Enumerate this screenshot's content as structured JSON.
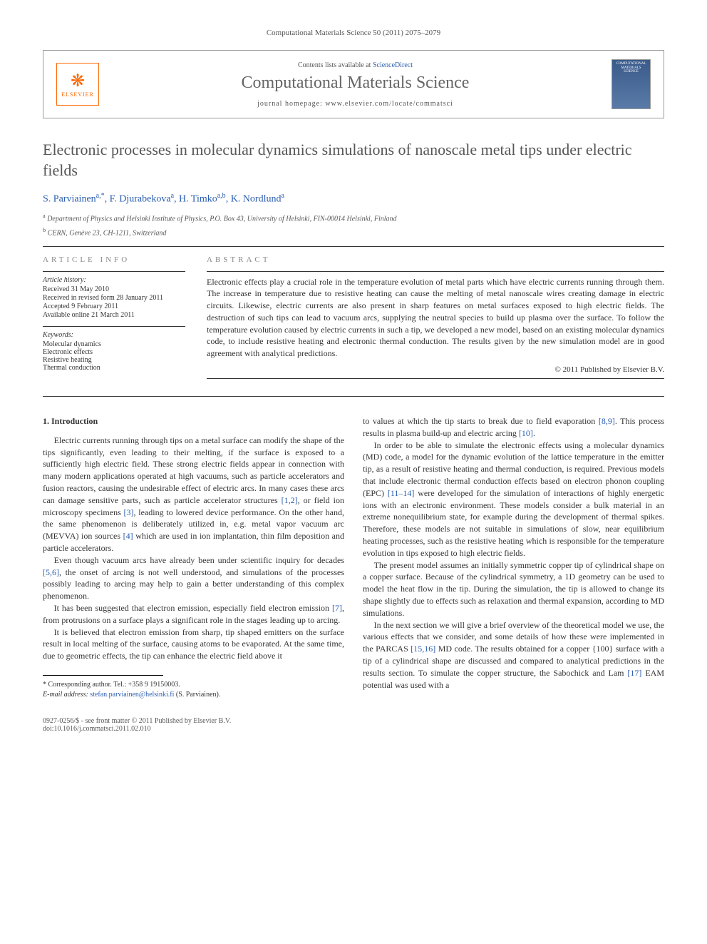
{
  "journal_ref": "Computational Materials Science 50 (2011) 2075–2079",
  "header": {
    "contents_prefix": "Contents lists available at ",
    "contents_link": "ScienceDirect",
    "journal_title": "Computational Materials Science",
    "homepage_label": "journal homepage: www.elsevier.com/locate/commatsci",
    "publisher": "ELSEVIER",
    "cover_label": "COMPUTATIONAL MATERIALS SCIENCE"
  },
  "article": {
    "title": "Electronic processes in molecular dynamics simulations of nanoscale metal tips under electric fields",
    "authors_html": "S. Parviainen",
    "author1_sup": "a,*",
    "author2": ", F. Djurabekova",
    "author2_sup": "a",
    "author3": ", H. Timko",
    "author3_sup": "a,b",
    "author4": ", K. Nordlund",
    "author4_sup": "a",
    "affiliations": {
      "a": "Department of Physics and Helsinki Institute of Physics, P.O. Box 43, University of Helsinki, FIN-00014 Helsinki, Finland",
      "b": "CERN, Genève 23, CH-1211, Switzerland"
    }
  },
  "meta": {
    "info_heading": "ARTICLE INFO",
    "abstract_heading": "ABSTRACT",
    "history_label": "Article history:",
    "history": {
      "received": "Received 31 May 2010",
      "revised": "Received in revised form 28 January 2011",
      "accepted": "Accepted 9 February 2011",
      "online": "Available online 21 March 2011"
    },
    "keywords_label": "Keywords:",
    "keywords": [
      "Molecular dynamics",
      "Electronic effects",
      "Resistive heating",
      "Thermal conduction"
    ]
  },
  "abstract": "Electronic effects play a crucial role in the temperature evolution of metal parts which have electric currents running through them. The increase in temperature due to resistive heating can cause the melting of metal nanoscale wires creating damage in electric circuits. Likewise, electric currents are also present in sharp features on metal surfaces exposed to high electric fields. The destruction of such tips can lead to vacuum arcs, supplying the neutral species to build up plasma over the surface. To follow the temperature evolution caused by electric currents in such a tip, we developed a new model, based on an existing molecular dynamics code, to include resistive heating and electronic thermal conduction. The results given by the new simulation model are in good agreement with analytical predictions.",
  "copyright": "© 2011 Published by Elsevier B.V.",
  "section1_heading": "1. Introduction",
  "body": {
    "p1a": "Electric currents running through tips on a metal surface can modify the shape of the tips significantly, even leading to their melting, if the surface is exposed to a sufficiently high electric field. These strong electric fields appear in connection with many modern applications operated at high vacuums, such as particle accelerators and fusion reactors, causing the undesirable effect of electric arcs. In many cases these arcs can damage sensitive parts, such as particle accelerator structures ",
    "p1_ref1": "[1,2]",
    "p1b": ", or field ion microscopy specimens ",
    "p1_ref2": "[3]",
    "p1c": ", leading to lowered device performance. On the other hand, the same phenomenon is deliberately utilized in, e.g. metal vapor vacuum arc (MEVVA) ion sources ",
    "p1_ref3": "[4]",
    "p1d": " which are used in ion implantation, thin film deposition and particle accelerators.",
    "p2a": "Even though vacuum arcs have already been under scientific inquiry for decades ",
    "p2_ref1": "[5,6]",
    "p2b": ", the onset of arcing is not well understood, and simulations of the processes possibly leading to arcing may help to gain a better understanding of this complex phenomenon.",
    "p3a": "It has been suggested that electron emission, especially field electron emission ",
    "p3_ref1": "[7]",
    "p3b": ", from protrusions on a surface plays a significant role in the stages leading up to arcing.",
    "p4": "It is believed that electron emission from sharp, tip shaped emitters on the surface result in local melting of the surface, causing atoms to be evaporated. At the same time, due to geometric effects, the tip can enhance the electric field above it",
    "p5a": "to values at which the tip starts to break due to field evaporation ",
    "p5_ref1": "[8,9]",
    "p5b": ". This process results in plasma build-up and electric arcing ",
    "p5_ref2": "[10]",
    "p5c": ".",
    "p6a": "In order to be able to simulate the electronic effects using a molecular dynamics (MD) code, a model for the dynamic evolution of the lattice temperature in the emitter tip, as a result of resistive heating and thermal conduction, is required. Previous models that include electronic thermal conduction effects based on electron phonon coupling (EPC) ",
    "p6_ref1": "[11–14]",
    "p6b": " were developed for the simulation of interactions of highly energetic ions with an electronic environment. These models consider a bulk material in an extreme nonequilibrium state, for example during the development of thermal spikes. Therefore, these models are not suitable in simulations of slow, near equilibrium heating processes, such as the resistive heating which is responsible for the temperature evolution in tips exposed to high electric fields.",
    "p7": "The present model assumes an initially symmetric copper tip of cylindrical shape on a copper surface. Because of the cylindrical symmetry, a 1D geometry can be used to model the heat flow in the tip. During the simulation, the tip is allowed to change its shape slightly due to effects such as relaxation and thermal expansion, according to MD simulations.",
    "p8a": "In the next section we will give a brief overview of the theoretical model we use, the various effects that we consider, and some details of how these were implemented in the PARCAS ",
    "p8_ref1": "[15,16]",
    "p8b": " MD code. The results obtained for a copper {100} surface with a tip of a cylindrical shape are discussed and compared to analytical predictions in the results section. To simulate the copper structure, the Sabochick and Lam ",
    "p8_ref2": "[17]",
    "p8c": " EAM potential was used with a"
  },
  "footnote": {
    "corr": "* Corresponding author. Tel.: +358 9 19150003.",
    "email_label": "E-mail address:",
    "email": "stefan.parviainen@helsinki.fi",
    "email_name": " (S. Parviainen)."
  },
  "bottom": {
    "issn": "0927-0256/$ - see front matter © 2011 Published by Elsevier B.V.",
    "doi": "doi:10.1016/j.commatsci.2011.02.010"
  },
  "colors": {
    "link": "#2a5db0",
    "orange": "#ff6600",
    "heading_gray": "#565656",
    "text": "#333333"
  }
}
